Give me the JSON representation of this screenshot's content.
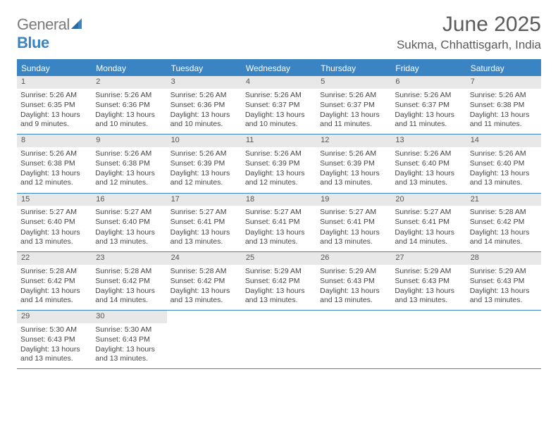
{
  "logo": {
    "text1": "General",
    "text2": "Blue"
  },
  "title": "June 2025",
  "location": "Sukma, Chhattisgarh, India",
  "colors": {
    "accent": "#3a84c4",
    "header_bg": "#3a84c4",
    "header_fg": "#ffffff",
    "daynum_bg": "#e8e8e8",
    "text": "#444444",
    "title": "#5a5a5a"
  },
  "day_headers": [
    "Sunday",
    "Monday",
    "Tuesday",
    "Wednesday",
    "Thursday",
    "Friday",
    "Saturday"
  ],
  "weeks": [
    [
      {
        "n": "1",
        "sr": "5:26 AM",
        "ss": "6:35 PM",
        "dl": "13 hours and 9 minutes."
      },
      {
        "n": "2",
        "sr": "5:26 AM",
        "ss": "6:36 PM",
        "dl": "13 hours and 10 minutes."
      },
      {
        "n": "3",
        "sr": "5:26 AM",
        "ss": "6:36 PM",
        "dl": "13 hours and 10 minutes."
      },
      {
        "n": "4",
        "sr": "5:26 AM",
        "ss": "6:37 PM",
        "dl": "13 hours and 10 minutes."
      },
      {
        "n": "5",
        "sr": "5:26 AM",
        "ss": "6:37 PM",
        "dl": "13 hours and 11 minutes."
      },
      {
        "n": "6",
        "sr": "5:26 AM",
        "ss": "6:37 PM",
        "dl": "13 hours and 11 minutes."
      },
      {
        "n": "7",
        "sr": "5:26 AM",
        "ss": "6:38 PM",
        "dl": "13 hours and 11 minutes."
      }
    ],
    [
      {
        "n": "8",
        "sr": "5:26 AM",
        "ss": "6:38 PM",
        "dl": "13 hours and 12 minutes."
      },
      {
        "n": "9",
        "sr": "5:26 AM",
        "ss": "6:38 PM",
        "dl": "13 hours and 12 minutes."
      },
      {
        "n": "10",
        "sr": "5:26 AM",
        "ss": "6:39 PM",
        "dl": "13 hours and 12 minutes."
      },
      {
        "n": "11",
        "sr": "5:26 AM",
        "ss": "6:39 PM",
        "dl": "13 hours and 12 minutes."
      },
      {
        "n": "12",
        "sr": "5:26 AM",
        "ss": "6:39 PM",
        "dl": "13 hours and 13 minutes."
      },
      {
        "n": "13",
        "sr": "5:26 AM",
        "ss": "6:40 PM",
        "dl": "13 hours and 13 minutes."
      },
      {
        "n": "14",
        "sr": "5:26 AM",
        "ss": "6:40 PM",
        "dl": "13 hours and 13 minutes."
      }
    ],
    [
      {
        "n": "15",
        "sr": "5:27 AM",
        "ss": "6:40 PM",
        "dl": "13 hours and 13 minutes."
      },
      {
        "n": "16",
        "sr": "5:27 AM",
        "ss": "6:40 PM",
        "dl": "13 hours and 13 minutes."
      },
      {
        "n": "17",
        "sr": "5:27 AM",
        "ss": "6:41 PM",
        "dl": "13 hours and 13 minutes."
      },
      {
        "n": "18",
        "sr": "5:27 AM",
        "ss": "6:41 PM",
        "dl": "13 hours and 13 minutes."
      },
      {
        "n": "19",
        "sr": "5:27 AM",
        "ss": "6:41 PM",
        "dl": "13 hours and 13 minutes."
      },
      {
        "n": "20",
        "sr": "5:27 AM",
        "ss": "6:41 PM",
        "dl": "13 hours and 14 minutes."
      },
      {
        "n": "21",
        "sr": "5:28 AM",
        "ss": "6:42 PM",
        "dl": "13 hours and 14 minutes."
      }
    ],
    [
      {
        "n": "22",
        "sr": "5:28 AM",
        "ss": "6:42 PM",
        "dl": "13 hours and 14 minutes."
      },
      {
        "n": "23",
        "sr": "5:28 AM",
        "ss": "6:42 PM",
        "dl": "13 hours and 14 minutes."
      },
      {
        "n": "24",
        "sr": "5:28 AM",
        "ss": "6:42 PM",
        "dl": "13 hours and 13 minutes."
      },
      {
        "n": "25",
        "sr": "5:29 AM",
        "ss": "6:42 PM",
        "dl": "13 hours and 13 minutes."
      },
      {
        "n": "26",
        "sr": "5:29 AM",
        "ss": "6:43 PM",
        "dl": "13 hours and 13 minutes."
      },
      {
        "n": "27",
        "sr": "5:29 AM",
        "ss": "6:43 PM",
        "dl": "13 hours and 13 minutes."
      },
      {
        "n": "28",
        "sr": "5:29 AM",
        "ss": "6:43 PM",
        "dl": "13 hours and 13 minutes."
      }
    ],
    [
      {
        "n": "29",
        "sr": "5:30 AM",
        "ss": "6:43 PM",
        "dl": "13 hours and 13 minutes."
      },
      {
        "n": "30",
        "sr": "5:30 AM",
        "ss": "6:43 PM",
        "dl": "13 hours and 13 minutes."
      },
      null,
      null,
      null,
      null,
      null
    ]
  ],
  "labels": {
    "sunrise": "Sunrise: ",
    "sunset": "Sunset: ",
    "daylight": "Daylight: "
  }
}
